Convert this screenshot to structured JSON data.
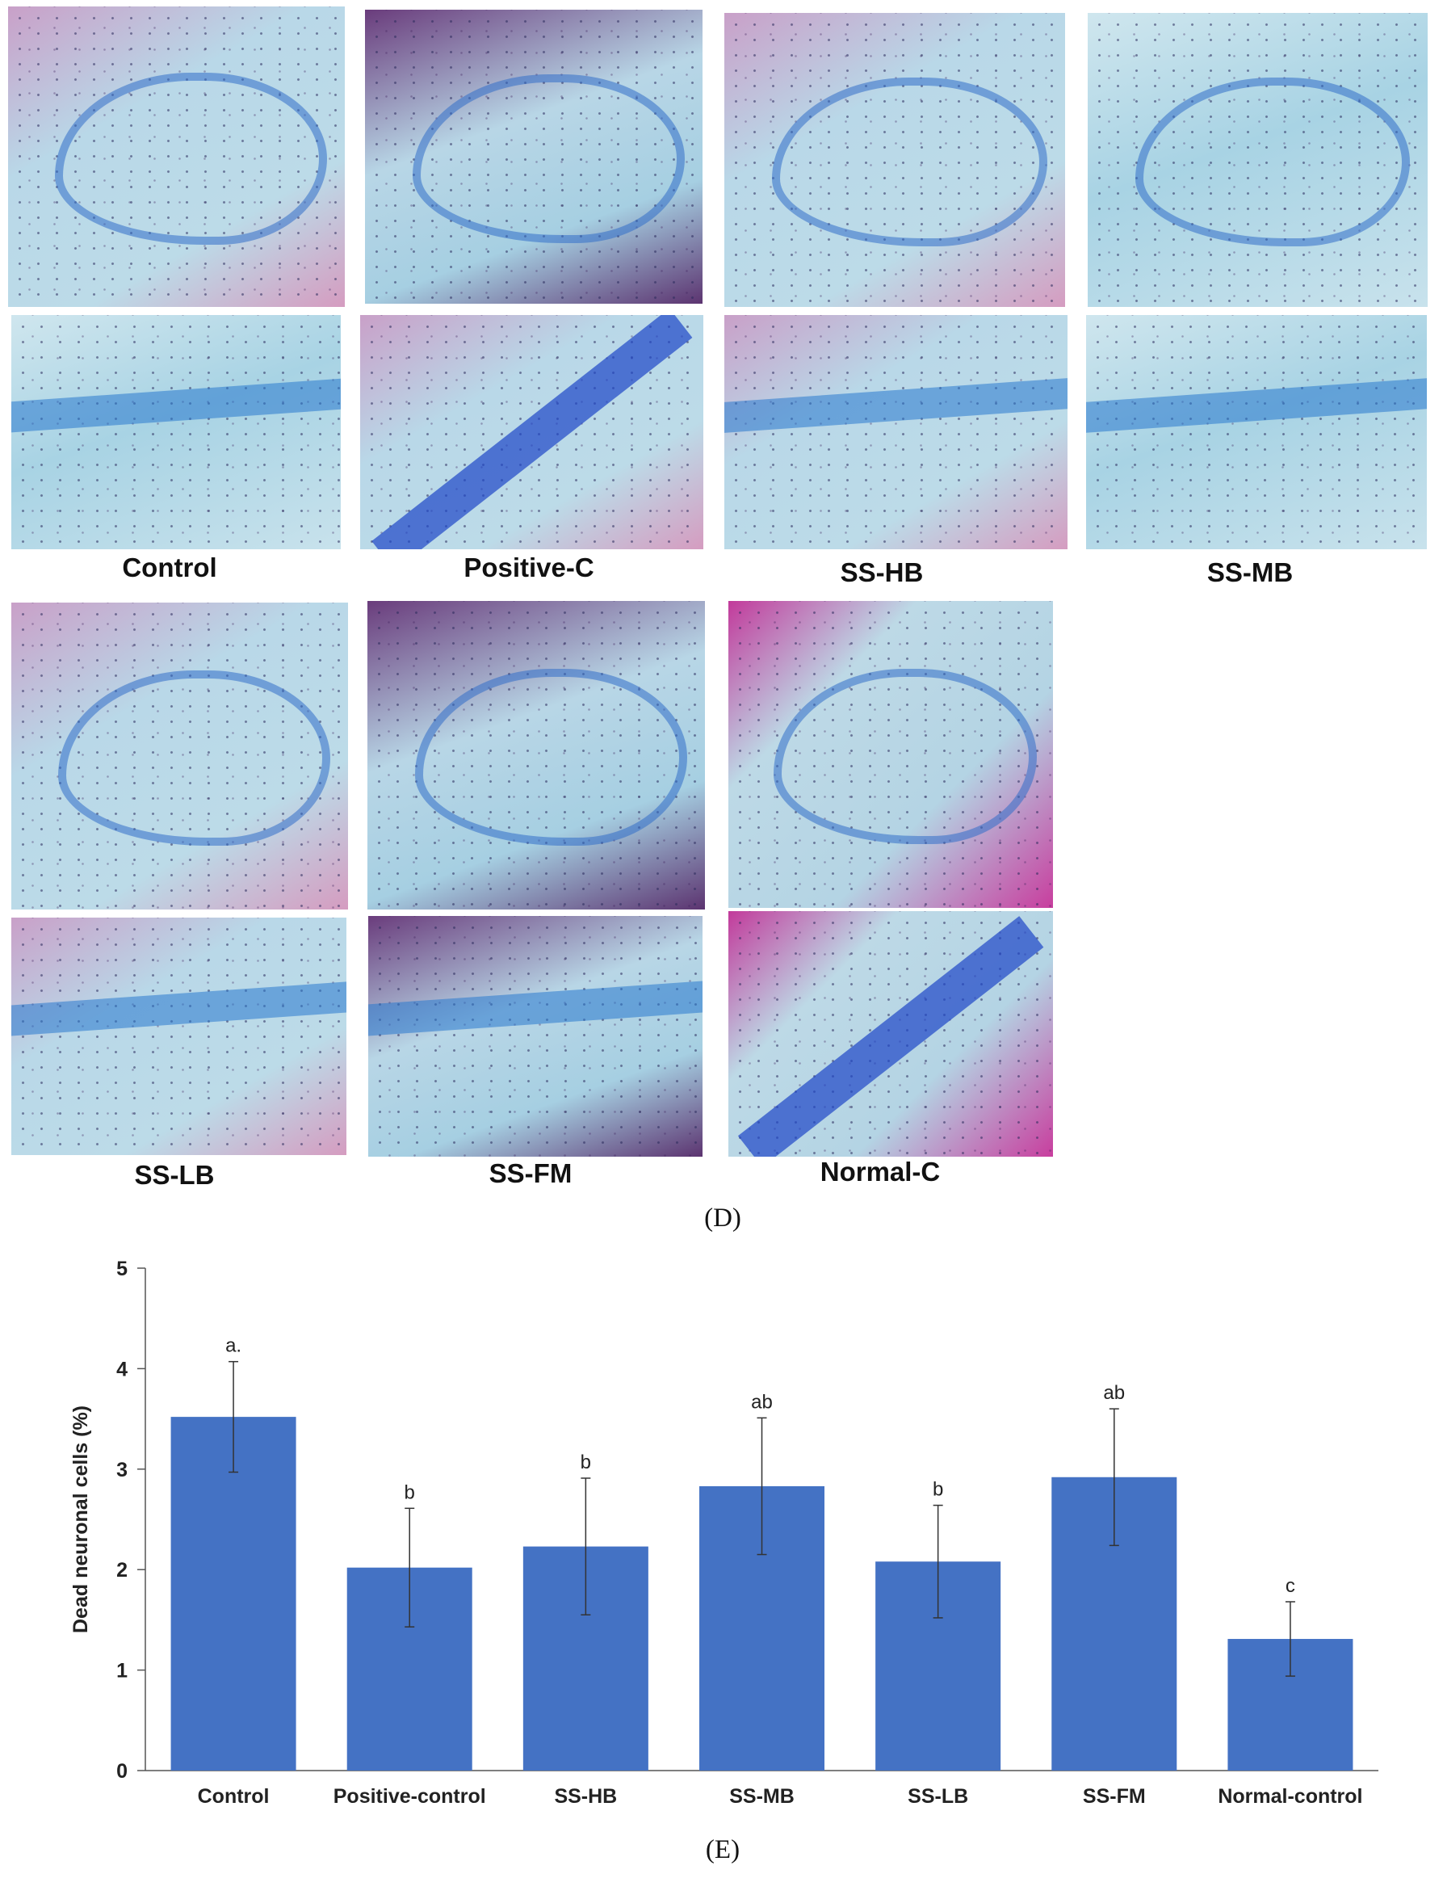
{
  "panel_d": {
    "labels": [
      "Control",
      "Positive-C",
      "SS-HB",
      "SS-MB",
      "SS-LB",
      "SS-FM",
      "Normal-C"
    ],
    "caption": "(D)"
  },
  "panel_e": {
    "caption": "(E)"
  },
  "chart_data": {
    "type": "bar",
    "ylabel": "Dead neuronal cells (%)",
    "ylim": [
      0,
      5
    ],
    "yticks": [
      "0",
      "1",
      "2",
      "3",
      "4",
      "5"
    ],
    "categories": [
      "Control",
      "Positive-control",
      "SS-HB",
      "SS-MB",
      "SS-LB",
      "SS-FM",
      "Normal-control"
    ],
    "values": [
      3.52,
      2.02,
      2.23,
      2.83,
      2.08,
      2.92,
      1.31
    ],
    "errors": [
      0.55,
      0.59,
      0.68,
      0.68,
      0.56,
      0.68,
      0.37
    ],
    "letters": [
      "a.",
      "b",
      "b",
      "ab",
      "b",
      "ab",
      "c"
    ],
    "bar_color": "#4472c4",
    "grid": false,
    "legend": "none"
  }
}
